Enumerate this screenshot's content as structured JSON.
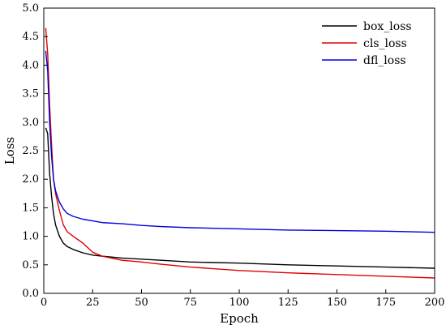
{
  "chart_data": {
    "type": "line",
    "title": "",
    "xlabel": "Epoch",
    "ylabel": "Loss",
    "xlim": [
      0,
      200
    ],
    "ylim": [
      0,
      5.0
    ],
    "x_ticks": [
      "0",
      "25",
      "50",
      "75",
      "100",
      "125",
      "150",
      "175",
      "200"
    ],
    "y_ticks": [
      "0.0",
      "0.5",
      "1.0",
      "1.5",
      "2.0",
      "2.5",
      "3.0",
      "3.5",
      "4.0",
      "4.5",
      "5.0"
    ],
    "grid": false,
    "legend_position": "top-right",
    "x": [
      1,
      2,
      3,
      4,
      5,
      6,
      8,
      10,
      12,
      15,
      20,
      25,
      30,
      40,
      50,
      60,
      75,
      100,
      125,
      150,
      175,
      200
    ],
    "series": [
      {
        "name": "box_loss",
        "color": "#000000",
        "values": [
          2.9,
          2.8,
          2.1,
          1.7,
          1.4,
          1.2,
          1.0,
          0.88,
          0.82,
          0.77,
          0.71,
          0.67,
          0.65,
          0.62,
          0.6,
          0.58,
          0.55,
          0.53,
          0.5,
          0.48,
          0.46,
          0.44
        ]
      },
      {
        "name": "cls_loss",
        "color": "#e00000",
        "values": [
          4.65,
          4.2,
          3.3,
          2.6,
          2.0,
          1.75,
          1.45,
          1.2,
          1.08,
          1.0,
          0.88,
          0.72,
          0.65,
          0.58,
          0.55,
          0.51,
          0.46,
          0.4,
          0.36,
          0.33,
          0.3,
          0.27
        ]
      },
      {
        "name": "dfl_loss",
        "color": "#0000dd",
        "values": [
          4.25,
          3.9,
          3.0,
          2.4,
          2.0,
          1.8,
          1.6,
          1.48,
          1.4,
          1.35,
          1.3,
          1.27,
          1.24,
          1.22,
          1.19,
          1.17,
          1.15,
          1.13,
          1.11,
          1.1,
          1.09,
          1.07
        ]
      }
    ]
  }
}
